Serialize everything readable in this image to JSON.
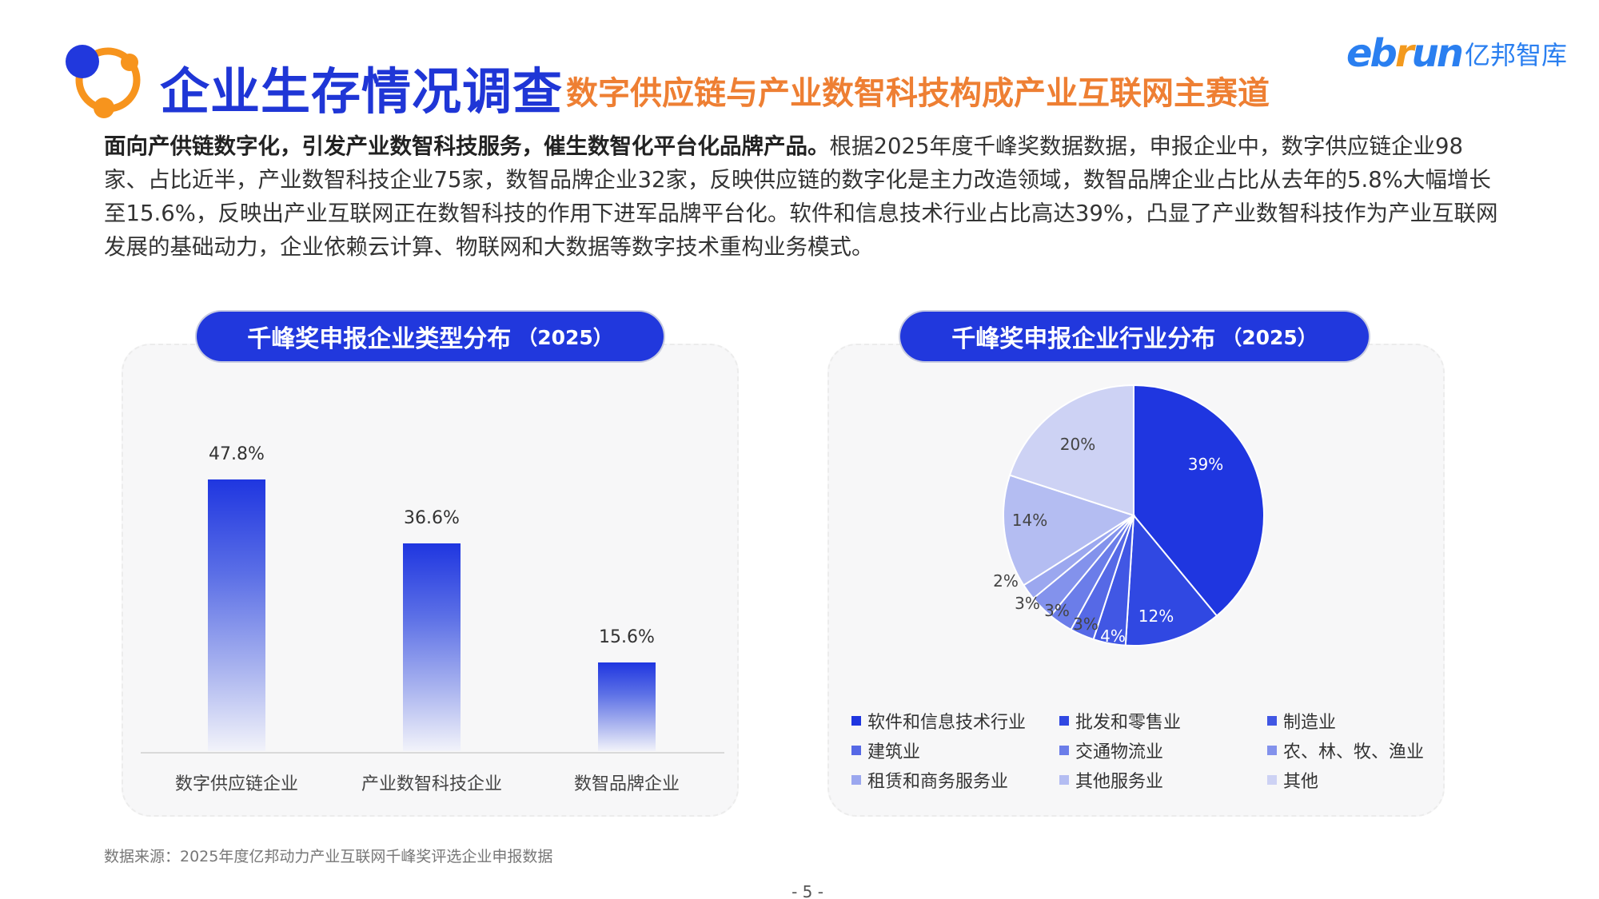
{
  "header": {
    "title": "企业生存情况调查",
    "subtitle": "数字供应链与产业数智科技构成产业互联网主赛道",
    "brand_en_pre": "eb",
    "brand_en_r": "r",
    "brand_en_post": "un",
    "brand_cn": "亿邦智库",
    "colors": {
      "title": "#1f36d6",
      "subtitle": "#ee7f33",
      "brand": "#2a7ff0"
    }
  },
  "intro": {
    "bold": "面向产供链数字化，引发产业数智科技服务，催生数智化平台化品牌产品。",
    "text": "根据2025年度千峰奖数据数据，申报企业中，数字供应链企业98家、占比近半，产业数智科技企业75家，数智品牌企业32家，反映供应链的数字化是主力改造领域，数智品牌企业占比从去年的5.8%大幅增长至15.6%，反映出产业互联网正在数智科技的作用下进军品牌平台化。软件和信息技术行业占比高达39%，凸显了产业数智科技作为产业互联网发展的基础动力，企业依赖云计算、物联网和大数据等数字技术重构业务模式。"
  },
  "left_panel": {
    "title": "千峰奖申报企业类型分布",
    "year": "（2025）"
  },
  "right_panel": {
    "title": "千峰奖申报企业行业分布",
    "year": "（2025）"
  },
  "chart_data": [
    {
      "type": "bar",
      "title": "千峰奖申报企业类型分布（2025）",
      "categories": [
        "数字供应链企业",
        "产业数智科技企业",
        "数智品牌企业"
      ],
      "values": [
        47.8,
        36.6,
        15.6
      ],
      "labels": [
        "47.8%",
        "36.6%",
        "15.6%"
      ],
      "xlabel": "",
      "ylabel": "",
      "ylim": [
        0,
        55
      ],
      "grid": false,
      "color": "#1f36e0"
    },
    {
      "type": "pie",
      "title": "千峰奖申报企业行业分布（2025）",
      "categories": [
        "软件和信息技术行业",
        "批发和零售业",
        "制造业",
        "建筑业",
        "交通物流业",
        "农、林、牧、渔业",
        "租赁和商务服务业",
        "其他服务业",
        "其他"
      ],
      "values": [
        39,
        12,
        4,
        3,
        3,
        3,
        2,
        14,
        20
      ],
      "labels": [
        "39%",
        "12%",
        "4%",
        "3%",
        "3%",
        "3%",
        "2%",
        "14%",
        "20%"
      ],
      "colors": [
        "#1f36e0",
        "#3048e2",
        "#4157e4",
        "#5669e6",
        "#6b7de9",
        "#8392ec",
        "#9ba7ef",
        "#b4bdf2",
        "#cdd2f4"
      ],
      "legend_position": "bottom"
    }
  ],
  "footer": {
    "source": "数据来源：2025年度亿邦动力产业互联网千峰奖评选企业申报数据",
    "page": "- 5 -"
  }
}
